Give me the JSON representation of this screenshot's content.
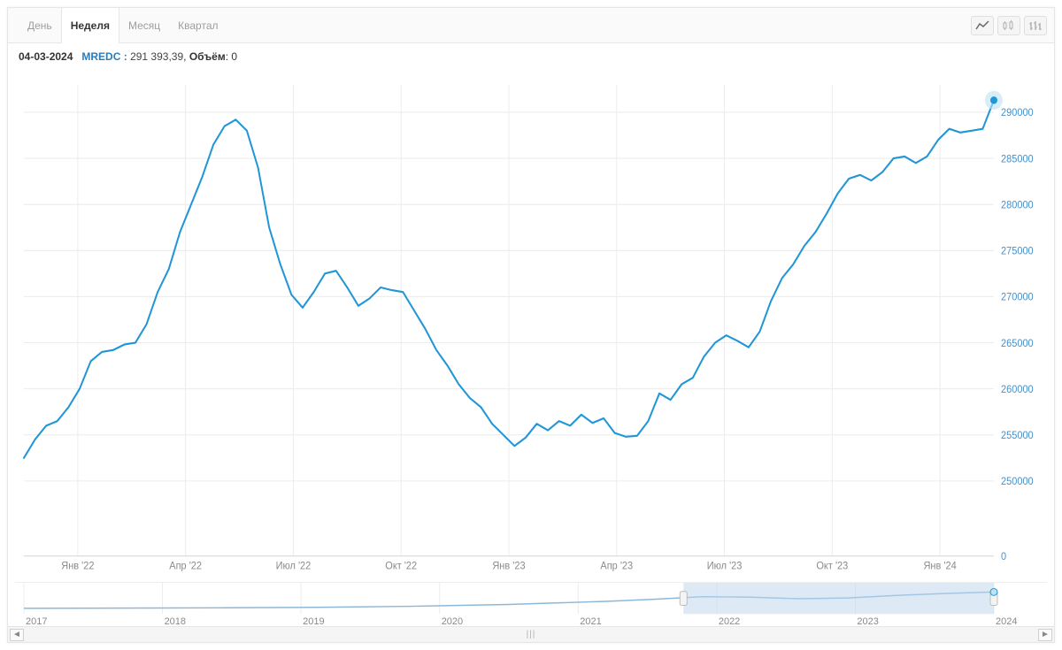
{
  "toolbar": {
    "tabs": [
      {
        "label": "День",
        "active": false
      },
      {
        "label": "Неделя",
        "active": true
      },
      {
        "label": "Месяц",
        "active": false
      },
      {
        "label": "Квартал",
        "active": false
      }
    ]
  },
  "info": {
    "date": "04-03-2024",
    "symbol": "MREDC",
    "value": "291 393,39",
    "volume_label": "Объём",
    "volume": "0"
  },
  "chart": {
    "type": "line",
    "line_color": "#2196d6",
    "line_width": 2,
    "marker_color": "#2196d6",
    "marker_halo": "#bde2f5",
    "background": "#ffffff",
    "grid_color": "#ececec",
    "axis_color": "#4a90c8",
    "xticks": [
      "Янв '22",
      "Апр '22",
      "Июл '22",
      "Окт '22",
      "Янв '23",
      "Апр '23",
      "Июл '23",
      "Окт '23",
      "Янв '24"
    ],
    "yticks": [
      250000,
      255000,
      260000,
      265000,
      270000,
      275000,
      280000,
      285000,
      290000
    ],
    "secondary_ytick": 0,
    "ylim": [
      248000,
      293000
    ],
    "series": [
      [
        0,
        252500
      ],
      [
        2,
        254500
      ],
      [
        4,
        256000
      ],
      [
        6,
        256500
      ],
      [
        8,
        258000
      ],
      [
        10,
        260000
      ],
      [
        12,
        263000
      ],
      [
        14,
        264000
      ],
      [
        16,
        264200
      ],
      [
        18,
        264800
      ],
      [
        20,
        265000
      ],
      [
        22,
        267000
      ],
      [
        24,
        270500
      ],
      [
        26,
        273000
      ],
      [
        28,
        277000
      ],
      [
        30,
        280000
      ],
      [
        32,
        283000
      ],
      [
        34,
        286500
      ],
      [
        36,
        288500
      ],
      [
        38,
        289200
      ],
      [
        40,
        288000
      ],
      [
        42,
        284000
      ],
      [
        44,
        277500
      ],
      [
        46,
        273500
      ],
      [
        48,
        270200
      ],
      [
        50,
        268800
      ],
      [
        52,
        270500
      ],
      [
        54,
        272500
      ],
      [
        56,
        272800
      ],
      [
        58,
        271000
      ],
      [
        60,
        269000
      ],
      [
        62,
        269800
      ],
      [
        64,
        271000
      ],
      [
        66,
        270700
      ],
      [
        68,
        270500
      ],
      [
        70,
        268500
      ],
      [
        72,
        266500
      ],
      [
        74,
        264200
      ],
      [
        76,
        262500
      ],
      [
        78,
        260500
      ],
      [
        80,
        259000
      ],
      [
        82,
        258000
      ],
      [
        84,
        256200
      ],
      [
        86,
        255000
      ],
      [
        88,
        253800
      ],
      [
        90,
        254700
      ],
      [
        92,
        256200
      ],
      [
        94,
        255500
      ],
      [
        96,
        256500
      ],
      [
        98,
        256000
      ],
      [
        100,
        257200
      ],
      [
        102,
        256300
      ],
      [
        104,
        256800
      ],
      [
        106,
        255200
      ],
      [
        108,
        254800
      ],
      [
        110,
        254900
      ],
      [
        112,
        256500
      ],
      [
        114,
        259500
      ],
      [
        116,
        258800
      ],
      [
        118,
        260500
      ],
      [
        120,
        261200
      ],
      [
        122,
        263500
      ],
      [
        124,
        265000
      ],
      [
        126,
        265800
      ],
      [
        128,
        265200
      ],
      [
        130,
        264500
      ],
      [
        132,
        266200
      ],
      [
        134,
        269500
      ],
      [
        136,
        272000
      ],
      [
        138,
        273500
      ],
      [
        140,
        275500
      ],
      [
        142,
        277000
      ],
      [
        144,
        279000
      ],
      [
        146,
        281200
      ],
      [
        148,
        282800
      ],
      [
        150,
        283200
      ],
      [
        152,
        282600
      ],
      [
        154,
        283500
      ],
      [
        156,
        285000
      ],
      [
        158,
        285200
      ],
      [
        160,
        284500
      ],
      [
        162,
        285200
      ],
      [
        164,
        287000
      ],
      [
        166,
        288200
      ],
      [
        168,
        287800
      ],
      [
        170,
        288000
      ],
      [
        172,
        288200
      ],
      [
        174,
        291300
      ]
    ],
    "x_domain": [
      0,
      174
    ]
  },
  "navigator": {
    "years": [
      "2017",
      "2018",
      "2019",
      "2020",
      "2021",
      "2022",
      "2023",
      "2024"
    ],
    "line_color": "#8bb8d8",
    "selection_fill": "#bcd5ee",
    "selection_opacity": 0.5,
    "selection_range": [
      0.68,
      1.0
    ],
    "series": [
      [
        0,
        0.15
      ],
      [
        0.1,
        0.16
      ],
      [
        0.2,
        0.17
      ],
      [
        0.3,
        0.19
      ],
      [
        0.4,
        0.23
      ],
      [
        0.5,
        0.3
      ],
      [
        0.6,
        0.42
      ],
      [
        0.65,
        0.5
      ],
      [
        0.7,
        0.6
      ],
      [
        0.75,
        0.58
      ],
      [
        0.8,
        0.52
      ],
      [
        0.85,
        0.55
      ],
      [
        0.9,
        0.65
      ],
      [
        0.95,
        0.72
      ],
      [
        1.0,
        0.78
      ]
    ]
  }
}
